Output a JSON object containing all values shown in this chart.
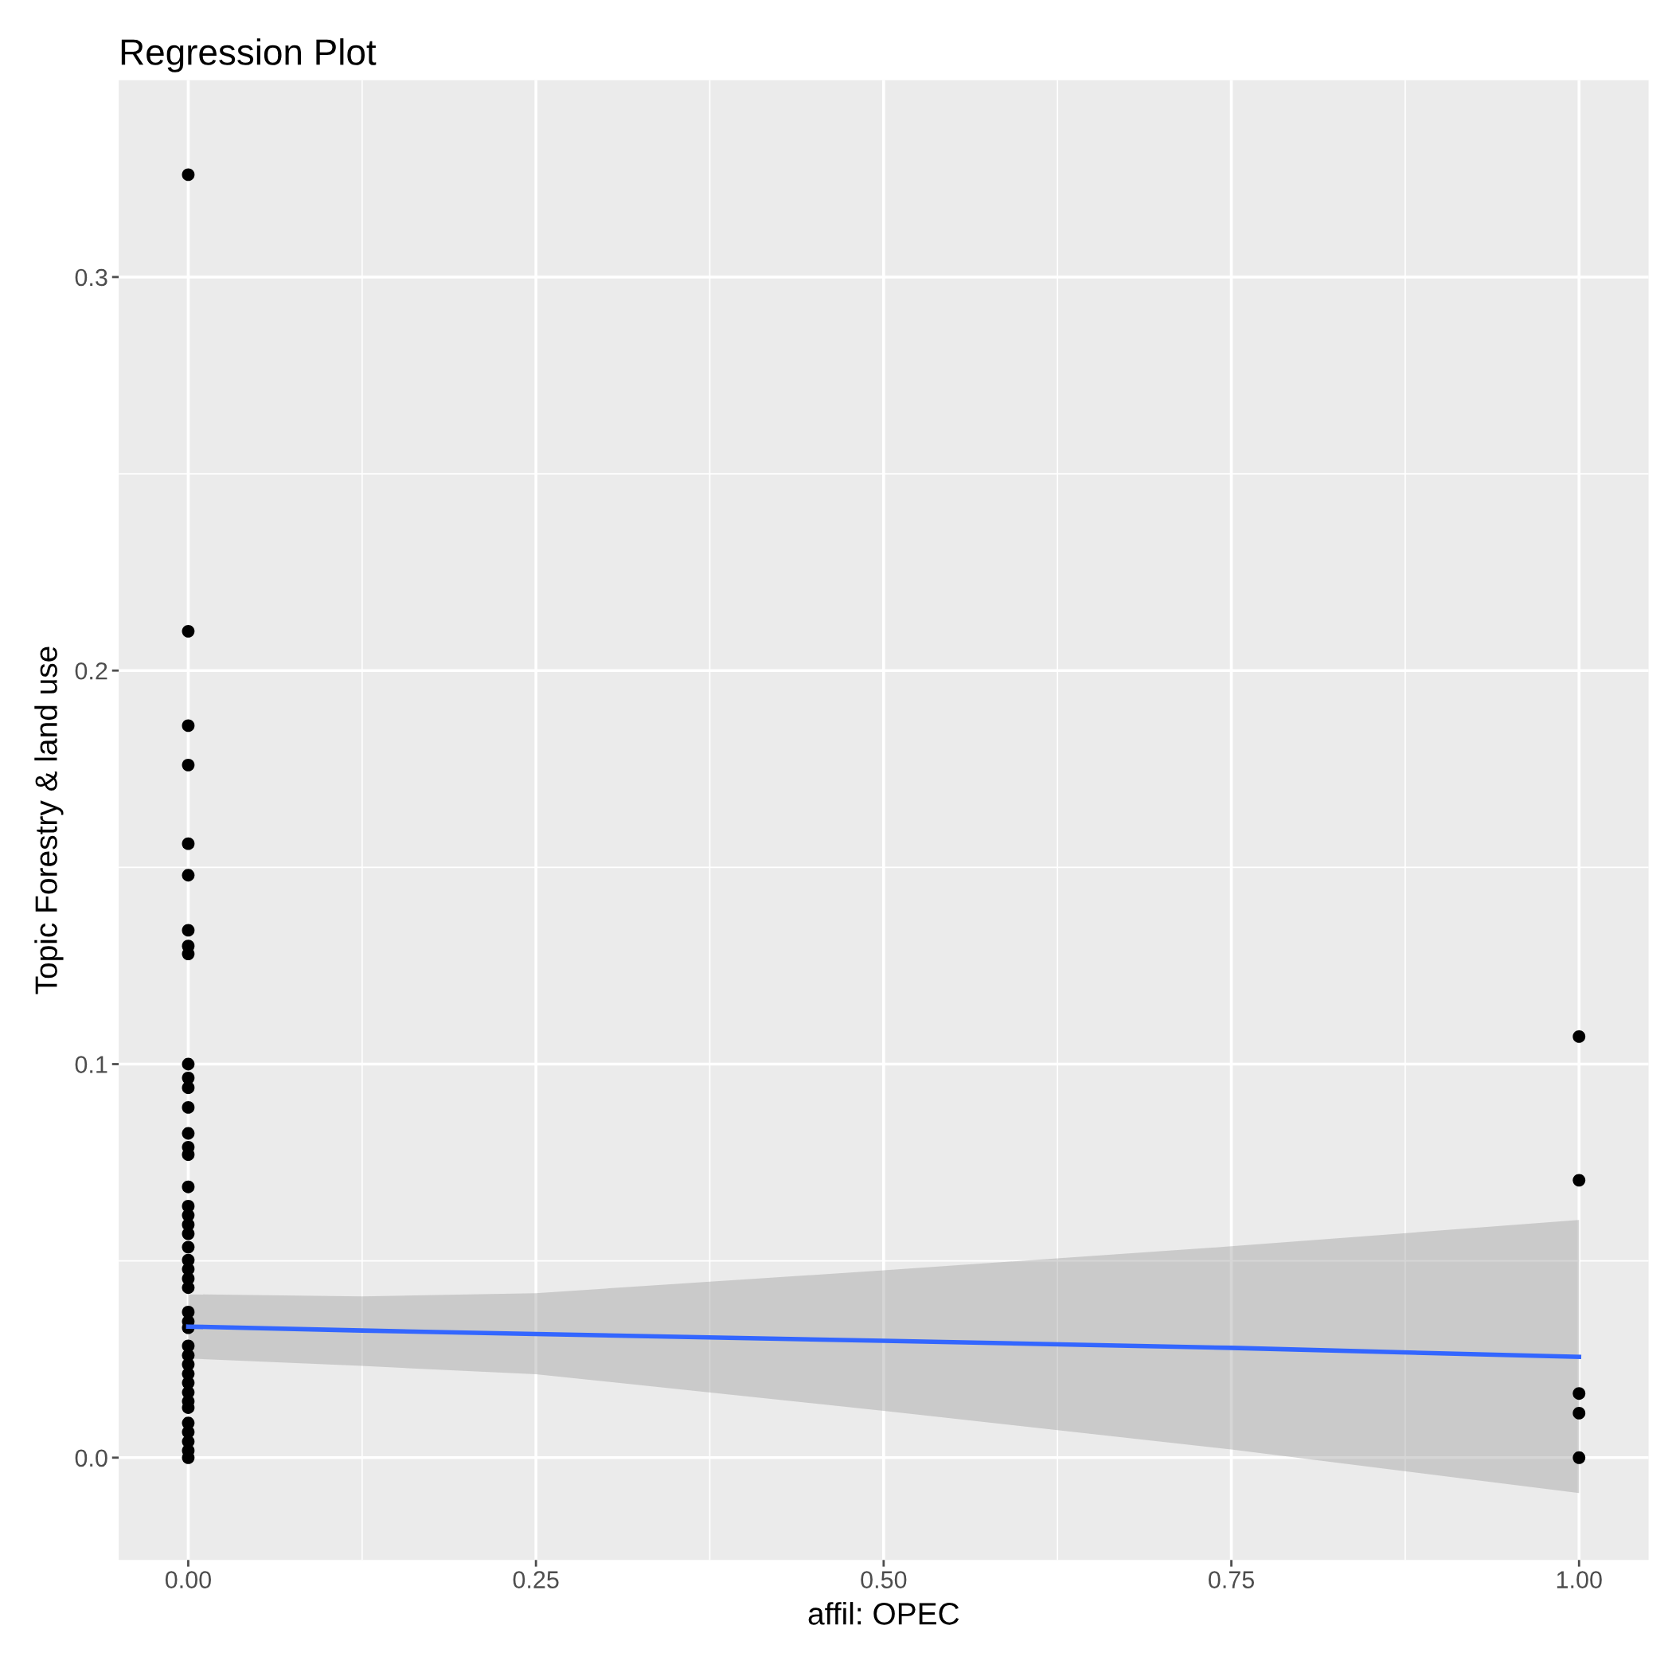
{
  "chart_data": {
    "type": "scatter",
    "title": "Regression Plot",
    "xlabel": "affil: OPEC",
    "ylabel": "Topic Forestry & land use",
    "xlim": [
      -0.05,
      1.05
    ],
    "ylim": [
      -0.026,
      0.35
    ],
    "xticks": [
      {
        "value": 0,
        "label": "0.00"
      },
      {
        "value": 0.25,
        "label": "0.25"
      },
      {
        "value": 0.5,
        "label": "0.50"
      },
      {
        "value": 0.75,
        "label": "0.75"
      },
      {
        "value": 1,
        "label": "1.00"
      }
    ],
    "yticks": [
      {
        "value": 0,
        "label": "0.0"
      },
      {
        "value": 0.1,
        "label": "0.1"
      },
      {
        "value": 0.2,
        "label": "0.2"
      },
      {
        "value": 0.3,
        "label": "0.3"
      }
    ],
    "grid": true,
    "series": [
      {
        "color": "#000000",
        "marker": "circle",
        "x": [
          0,
          0,
          0,
          0,
          0,
          0,
          0,
          0,
          0,
          0,
          0,
          0,
          0,
          0,
          0,
          0,
          0,
          0,
          0,
          0,
          0,
          0,
          0,
          0,
          0,
          0,
          0,
          0,
          0,
          0,
          0,
          0,
          0,
          0,
          0,
          0,
          0,
          0,
          0,
          0,
          0,
          0,
          1,
          1,
          1,
          1,
          1
        ],
        "values": [
          0.326,
          0.21,
          0.186,
          0.176,
          0.156,
          0.148,
          0.134,
          0.13,
          0.128,
          0.1,
          0.0965,
          0.094,
          0.089,
          0.0824,
          0.0789,
          0.077,
          0.0688,
          0.0639,
          0.0616,
          0.0592,
          0.0569,
          0.0535,
          0.0502,
          0.0479,
          0.0455,
          0.0432,
          0.037,
          0.0346,
          0.033,
          0.0284,
          0.026,
          0.0237,
          0.0213,
          0.019,
          0.0166,
          0.0143,
          0.0127,
          0.0088,
          0.0065,
          0.0041,
          0.0018,
          0,
          0.107,
          0.0705,
          0.0163,
          0.0113,
          0
        ]
      },
      {
        "type": "line",
        "color": "#3366ff",
        "x": [
          0,
          0.125,
          0.25,
          0.5,
          0.75,
          1
        ],
        "values": [
          0.0333,
          0.0323,
          0.0314,
          0.0297,
          0.0279,
          0.0256
        ],
        "lower": [
          0.0252,
          0.0233,
          0.0212,
          0.0119,
          0.0021,
          -0.009
        ],
        "upper": [
          0.0415,
          0.041,
          0.0418,
          0.0476,
          0.0537,
          0.0604
        ]
      }
    ]
  }
}
